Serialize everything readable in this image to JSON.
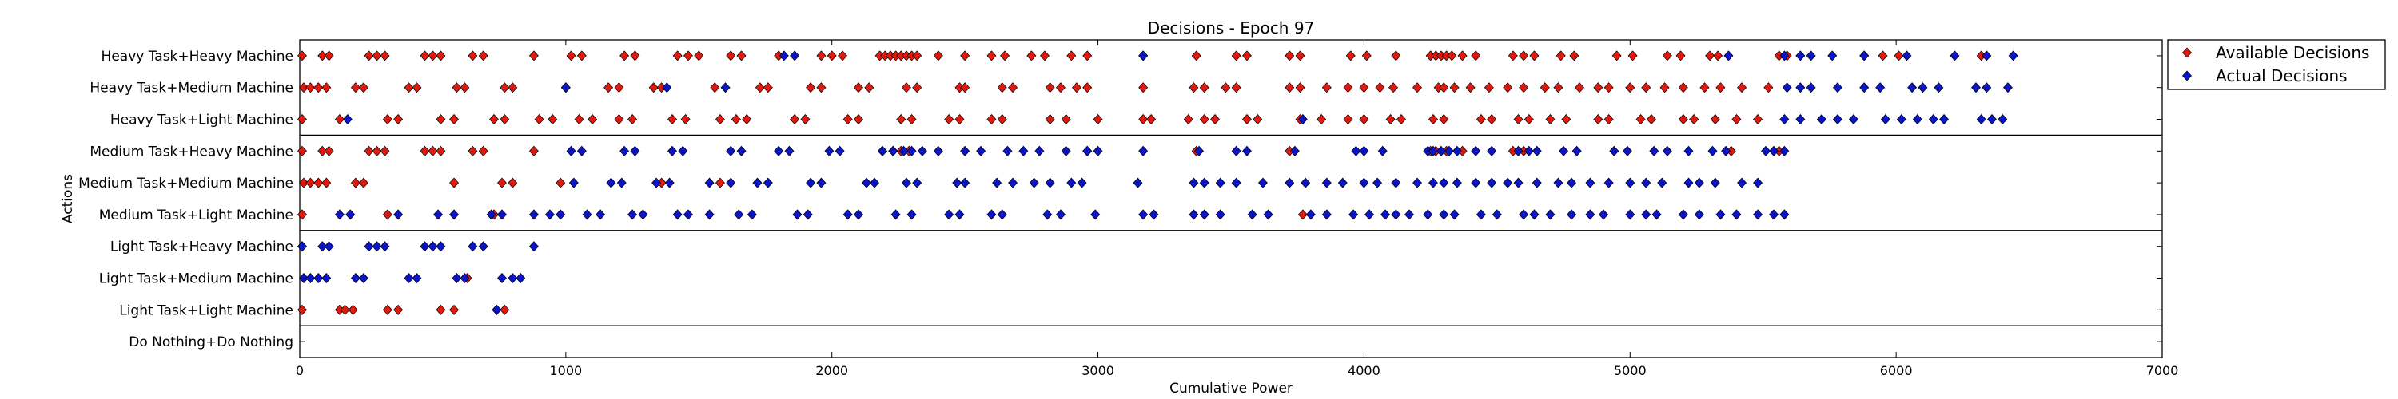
{
  "chart_data": {
    "type": "scatter",
    "title": "Decisions - Epoch 97",
    "xlabel": "Cumulative Power",
    "ylabel": "Actions",
    "xlim": [
      0,
      7000
    ],
    "xticks": [
      0,
      1000,
      2000,
      3000,
      4000,
      5000,
      6000,
      7000
    ],
    "categories": [
      "Heavy Task+Heavy Machine",
      "Heavy Task+Medium Machine",
      "Heavy Task+Light Machine",
      "Medium Task+Heavy Machine",
      "Medium Task+Medium Machine",
      "Medium Task+Light Machine",
      "Light Task+Heavy Machine",
      "Light Task+Medium Machine",
      "Light Task+Light Machine",
      "Do Nothing+Do Nothing"
    ],
    "group_separators_after": [
      2,
      5,
      8
    ],
    "legend": {
      "placement": "outside-right",
      "entries": [
        "Available Decisions",
        "Actual Decisions"
      ]
    },
    "series": [
      {
        "name": "Available Decisions",
        "color": "#e0190f",
        "marker": "diamond",
        "points": {
          "Heavy Task+Heavy Machine": [
            5,
            85,
            110,
            260,
            290,
            320,
            470,
            500,
            530,
            650,
            690,
            880,
            1020,
            1060,
            1220,
            1260,
            1420,
            1460,
            1500,
            1620,
            1660,
            1800,
            1960,
            2000,
            2040,
            2180,
            2200,
            2220,
            2240,
            2260,
            2280,
            2300,
            2320,
            2400,
            2500,
            2600,
            2650,
            2750,
            2800,
            2900,
            2960,
            3170,
            3370,
            3520,
            3560,
            3720,
            3760,
            3950,
            4010,
            4120,
            4250,
            4270,
            4290,
            4310,
            4330,
            4370,
            4420,
            4560,
            4600,
            4640,
            4740,
            4790,
            4950,
            5010,
            5140,
            5190,
            5300,
            5330,
            5560,
            5590,
            5880,
            5950,
            6010,
            6320
          ],
          "Heavy Task+Medium Machine": [
            15,
            40,
            70,
            100,
            210,
            240,
            410,
            440,
            590,
            620,
            770,
            800,
            1000,
            1160,
            1200,
            1330,
            1360,
            1560,
            1730,
            1760,
            1920,
            1960,
            2100,
            2140,
            2280,
            2320,
            2480,
            2500,
            2640,
            2680,
            2820,
            2860,
            2920,
            2960,
            3170,
            3360,
            3400,
            3480,
            3520,
            3720,
            3760,
            3860,
            3940,
            4000,
            4060,
            4110,
            4200,
            4280,
            4300,
            4340,
            4400,
            4470,
            4540,
            4600,
            4680,
            4730,
            4810,
            4880,
            4920,
            5000,
            5060,
            5130,
            5200,
            5280,
            5340,
            5420,
            5520
          ],
          "Heavy Task+Light Machine": [
            5,
            150,
            330,
            370,
            530,
            580,
            730,
            770,
            900,
            950,
            1050,
            1100,
            1200,
            1250,
            1400,
            1450,
            1580,
            1640,
            1680,
            1860,
            1900,
            2060,
            2100,
            2260,
            2300,
            2440,
            2480,
            2600,
            2640,
            2820,
            2880,
            3000,
            3170,
            3200,
            3340,
            3400,
            3440,
            3560,
            3600,
            3760,
            3840,
            3940,
            4000,
            4100,
            4140,
            4260,
            4300,
            4440,
            4480,
            4580,
            4620,
            4700,
            4760,
            4880,
            4920,
            5040,
            5080,
            5200,
            5240,
            5320,
            5400,
            5480
          ],
          "Medium Task+Heavy Machine": [
            5,
            85,
            110,
            260,
            290,
            320,
            470,
            500,
            530,
            650,
            690,
            880,
            2190,
            2230,
            2260,
            2290,
            2960,
            3370,
            3720,
            4250,
            4270,
            4310,
            4370,
            4560,
            4600,
            5380,
            5560
          ],
          "Medium Task+Medium Machine": [
            15,
            40,
            70,
            100,
            210,
            240,
            580,
            760,
            800,
            980,
            1360,
            1580
          ],
          "Medium Task+Light Machine": [
            5,
            330,
            730,
            3770
          ],
          "Light Task+Heavy Machine": [
            5
          ],
          "Light Task+Medium Machine": [
            630
          ],
          "Light Task+Light Machine": [
            5,
            150,
            170,
            200,
            330,
            370,
            530,
            580,
            740,
            770
          ],
          "Do Nothing+Do Nothing": []
        }
      },
      {
        "name": "Actual Decisions",
        "color": "#0a14c8",
        "marker": "diamond",
        "points": {
          "Heavy Task+Heavy Machine": [
            1820,
            1860,
            3170,
            5370,
            5580,
            5640,
            5680,
            5760,
            5880,
            6040,
            6220,
            6340,
            6440
          ],
          "Heavy Task+Medium Machine": [
            1000,
            1380,
            1600,
            5590,
            5640,
            5680,
            5780,
            5880,
            5940,
            6060,
            6100,
            6160,
            6300,
            6340,
            6420
          ],
          "Heavy Task+Light Machine": [
            180,
            3770,
            5580,
            5640,
            5720,
            5780,
            5840,
            5960,
            6020,
            6080,
            6140,
            6180,
            6320,
            6360,
            6400
          ],
          "Medium Task+Heavy Machine": [
            1020,
            1060,
            1220,
            1260,
            1400,
            1440,
            1620,
            1660,
            1800,
            1840,
            1990,
            2030,
            2190,
            2230,
            2270,
            2300,
            2340,
            2400,
            2500,
            2560,
            2660,
            2720,
            2780,
            2880,
            2960,
            3000,
            3170,
            3380,
            3520,
            3560,
            3740,
            3970,
            4000,
            4070,
            4240,
            4260,
            4290,
            4320,
            4350,
            4420,
            4480,
            4580,
            4620,
            4650,
            4750,
            4800,
            4940,
            4990,
            5090,
            5140,
            5220,
            5310,
            5360,
            5510,
            5540,
            5580
          ],
          "Medium Task+Medium Machine": [
            1030,
            1170,
            1210,
            1340,
            1390,
            1540,
            1620,
            1720,
            1760,
            1920,
            1960,
            2130,
            2160,
            2280,
            2320,
            2470,
            2500,
            2620,
            2680,
            2760,
            2820,
            2900,
            2940,
            3150,
            3360,
            3400,
            3460,
            3520,
            3620,
            3720,
            3780,
            3860,
            3920,
            4000,
            4050,
            4120,
            4200,
            4260,
            4300,
            4350,
            4420,
            4480,
            4540,
            4580,
            4650,
            4730,
            4780,
            4850,
            4920,
            5000,
            5060,
            5120,
            5220,
            5260,
            5320,
            5420,
            5480
          ],
          "Medium Task+Light Machine": [
            150,
            190,
            370,
            520,
            580,
            720,
            760,
            880,
            940,
            980,
            1080,
            1130,
            1250,
            1290,
            1420,
            1460,
            1540,
            1650,
            1700,
            1870,
            1910,
            2060,
            2100,
            2240,
            2300,
            2440,
            2480,
            2600,
            2640,
            2810,
            2860,
            2990,
            3170,
            3210,
            3360,
            3400,
            3460,
            3580,
            3640,
            3800,
            3860,
            3960,
            4020,
            4080,
            4120,
            4170,
            4240,
            4300,
            4340,
            4440,
            4500,
            4600,
            4640,
            4700,
            4780,
            4850,
            4900,
            5000,
            5060,
            5100,
            5200,
            5260,
            5340,
            5400,
            5480,
            5540,
            5580
          ],
          "Light Task+Heavy Machine": [
            5,
            85,
            110,
            260,
            290,
            320,
            470,
            500,
            530,
            650,
            690,
            880
          ],
          "Light Task+Medium Machine": [
            15,
            40,
            70,
            100,
            210,
            240,
            410,
            440,
            590,
            620,
            760,
            800,
            830
          ],
          "Light Task+Light Machine": [
            740
          ],
          "Do Nothing+Do Nothing": []
        }
      }
    ]
  }
}
